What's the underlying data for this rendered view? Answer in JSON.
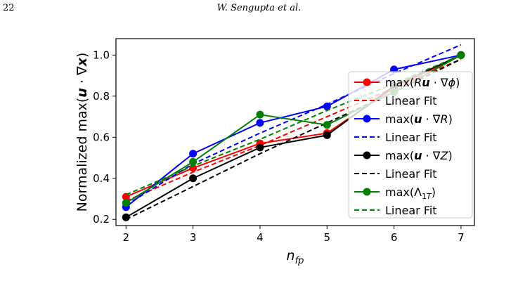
{
  "page": {
    "number": "22",
    "running_head": "W. Sengupta et al."
  },
  "chart_data": {
    "type": "line",
    "xlabel": "n_fp",
    "ylabel": "Normalized max(u · ∇x)",
    "x": [
      2,
      3,
      4,
      5,
      6,
      7
    ],
    "xlim": [
      1.85,
      7.2
    ],
    "ylim": [
      0.17,
      1.08
    ],
    "xticks": [
      2,
      3,
      4,
      5,
      6,
      7
    ],
    "yticks": [
      0.2,
      0.4,
      0.6,
      0.8,
      1.0
    ],
    "ytick_labels": [
      "0.2",
      "0.4",
      "0.6",
      "0.8",
      "1.0"
    ],
    "grid": false,
    "legend_position": "right",
    "series": [
      {
        "name": "max(Ru · ∇ϕ)",
        "color": "#ff0000",
        "values": [
          0.31,
          0.45,
          0.57,
          0.62,
          0.84,
          1.0
        ],
        "fit_label": "Linear Fit",
        "fit": [
          0.29,
          0.43,
          0.56,
          0.7,
          0.84,
          0.98
        ]
      },
      {
        "name": "max(u · ∇R)",
        "color": "#0000ff",
        "values": [
          0.26,
          0.52,
          0.67,
          0.75,
          0.93,
          1.0
        ],
        "fit_label": "Linear Fit",
        "fit": [
          0.27,
          0.47,
          0.62,
          0.76,
          0.91,
          1.05
        ]
      },
      {
        "name": "max(u · ∇Z)",
        "color": "#000000",
        "values": [
          0.21,
          0.4,
          0.55,
          0.61,
          0.85,
          1.0
        ],
        "fit_label": "Linear Fit",
        "fit": [
          0.2,
          0.36,
          0.52,
          0.67,
          0.82,
          0.98
        ]
      },
      {
        "name": "max(Λ1T)",
        "color": "#008000",
        "values": [
          0.28,
          0.48,
          0.71,
          0.66,
          0.82,
          1.0
        ],
        "fit_label": "Linear Fit",
        "fit": [
          0.32,
          0.46,
          0.59,
          0.73,
          0.86,
          1.0
        ]
      }
    ]
  }
}
